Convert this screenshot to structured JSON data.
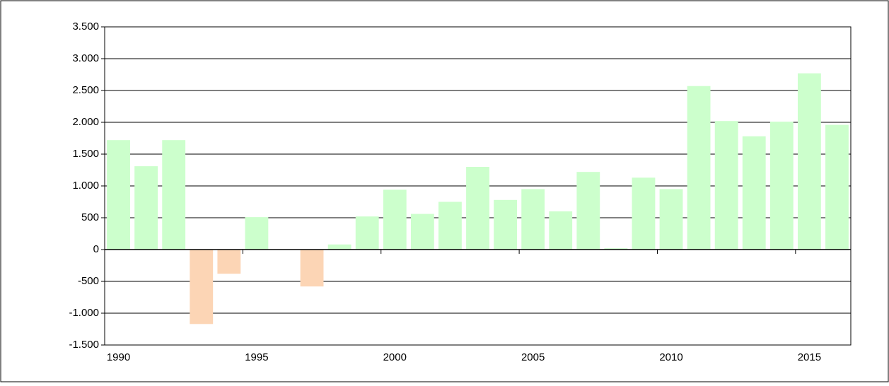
{
  "chart_data": {
    "type": "bar",
    "categories": [
      "1990",
      null,
      null,
      null,
      null,
      "1995",
      null,
      null,
      null,
      null,
      "2000",
      null,
      null,
      null,
      null,
      "2005",
      null,
      null,
      null,
      null,
      "2010",
      null,
      null,
      null,
      null,
      "2015",
      null
    ],
    "values": [
      1720,
      1310,
      1720,
      -1170,
      -380,
      510,
      0,
      -580,
      80,
      520,
      940,
      560,
      750,
      1300,
      780,
      950,
      600,
      1220,
      20,
      1130,
      950,
      2570,
      2020,
      1780,
      2010,
      2770,
      1960
    ],
    "color": "#ccffcc",
    "negative_color": "#fcd5b5",
    "ylim": [
      -1500,
      3500
    ],
    "yticks": [
      {
        "value": -1500,
        "label": "-1.500"
      },
      {
        "value": -1000,
        "label": "-1.000"
      },
      -500,
      0,
      500,
      {
        "value": 1000,
        "label": "1.000"
      },
      {
        "value": 1500,
        "label": "1.500"
      },
      {
        "value": 2000,
        "label": "2.000"
      },
      {
        "value": 2500,
        "label": "2.500"
      },
      {
        "value": 3000,
        "label": "3.000"
      },
      {
        "value": 3500,
        "label": "3.500"
      }
    ],
    "grid": true
  }
}
